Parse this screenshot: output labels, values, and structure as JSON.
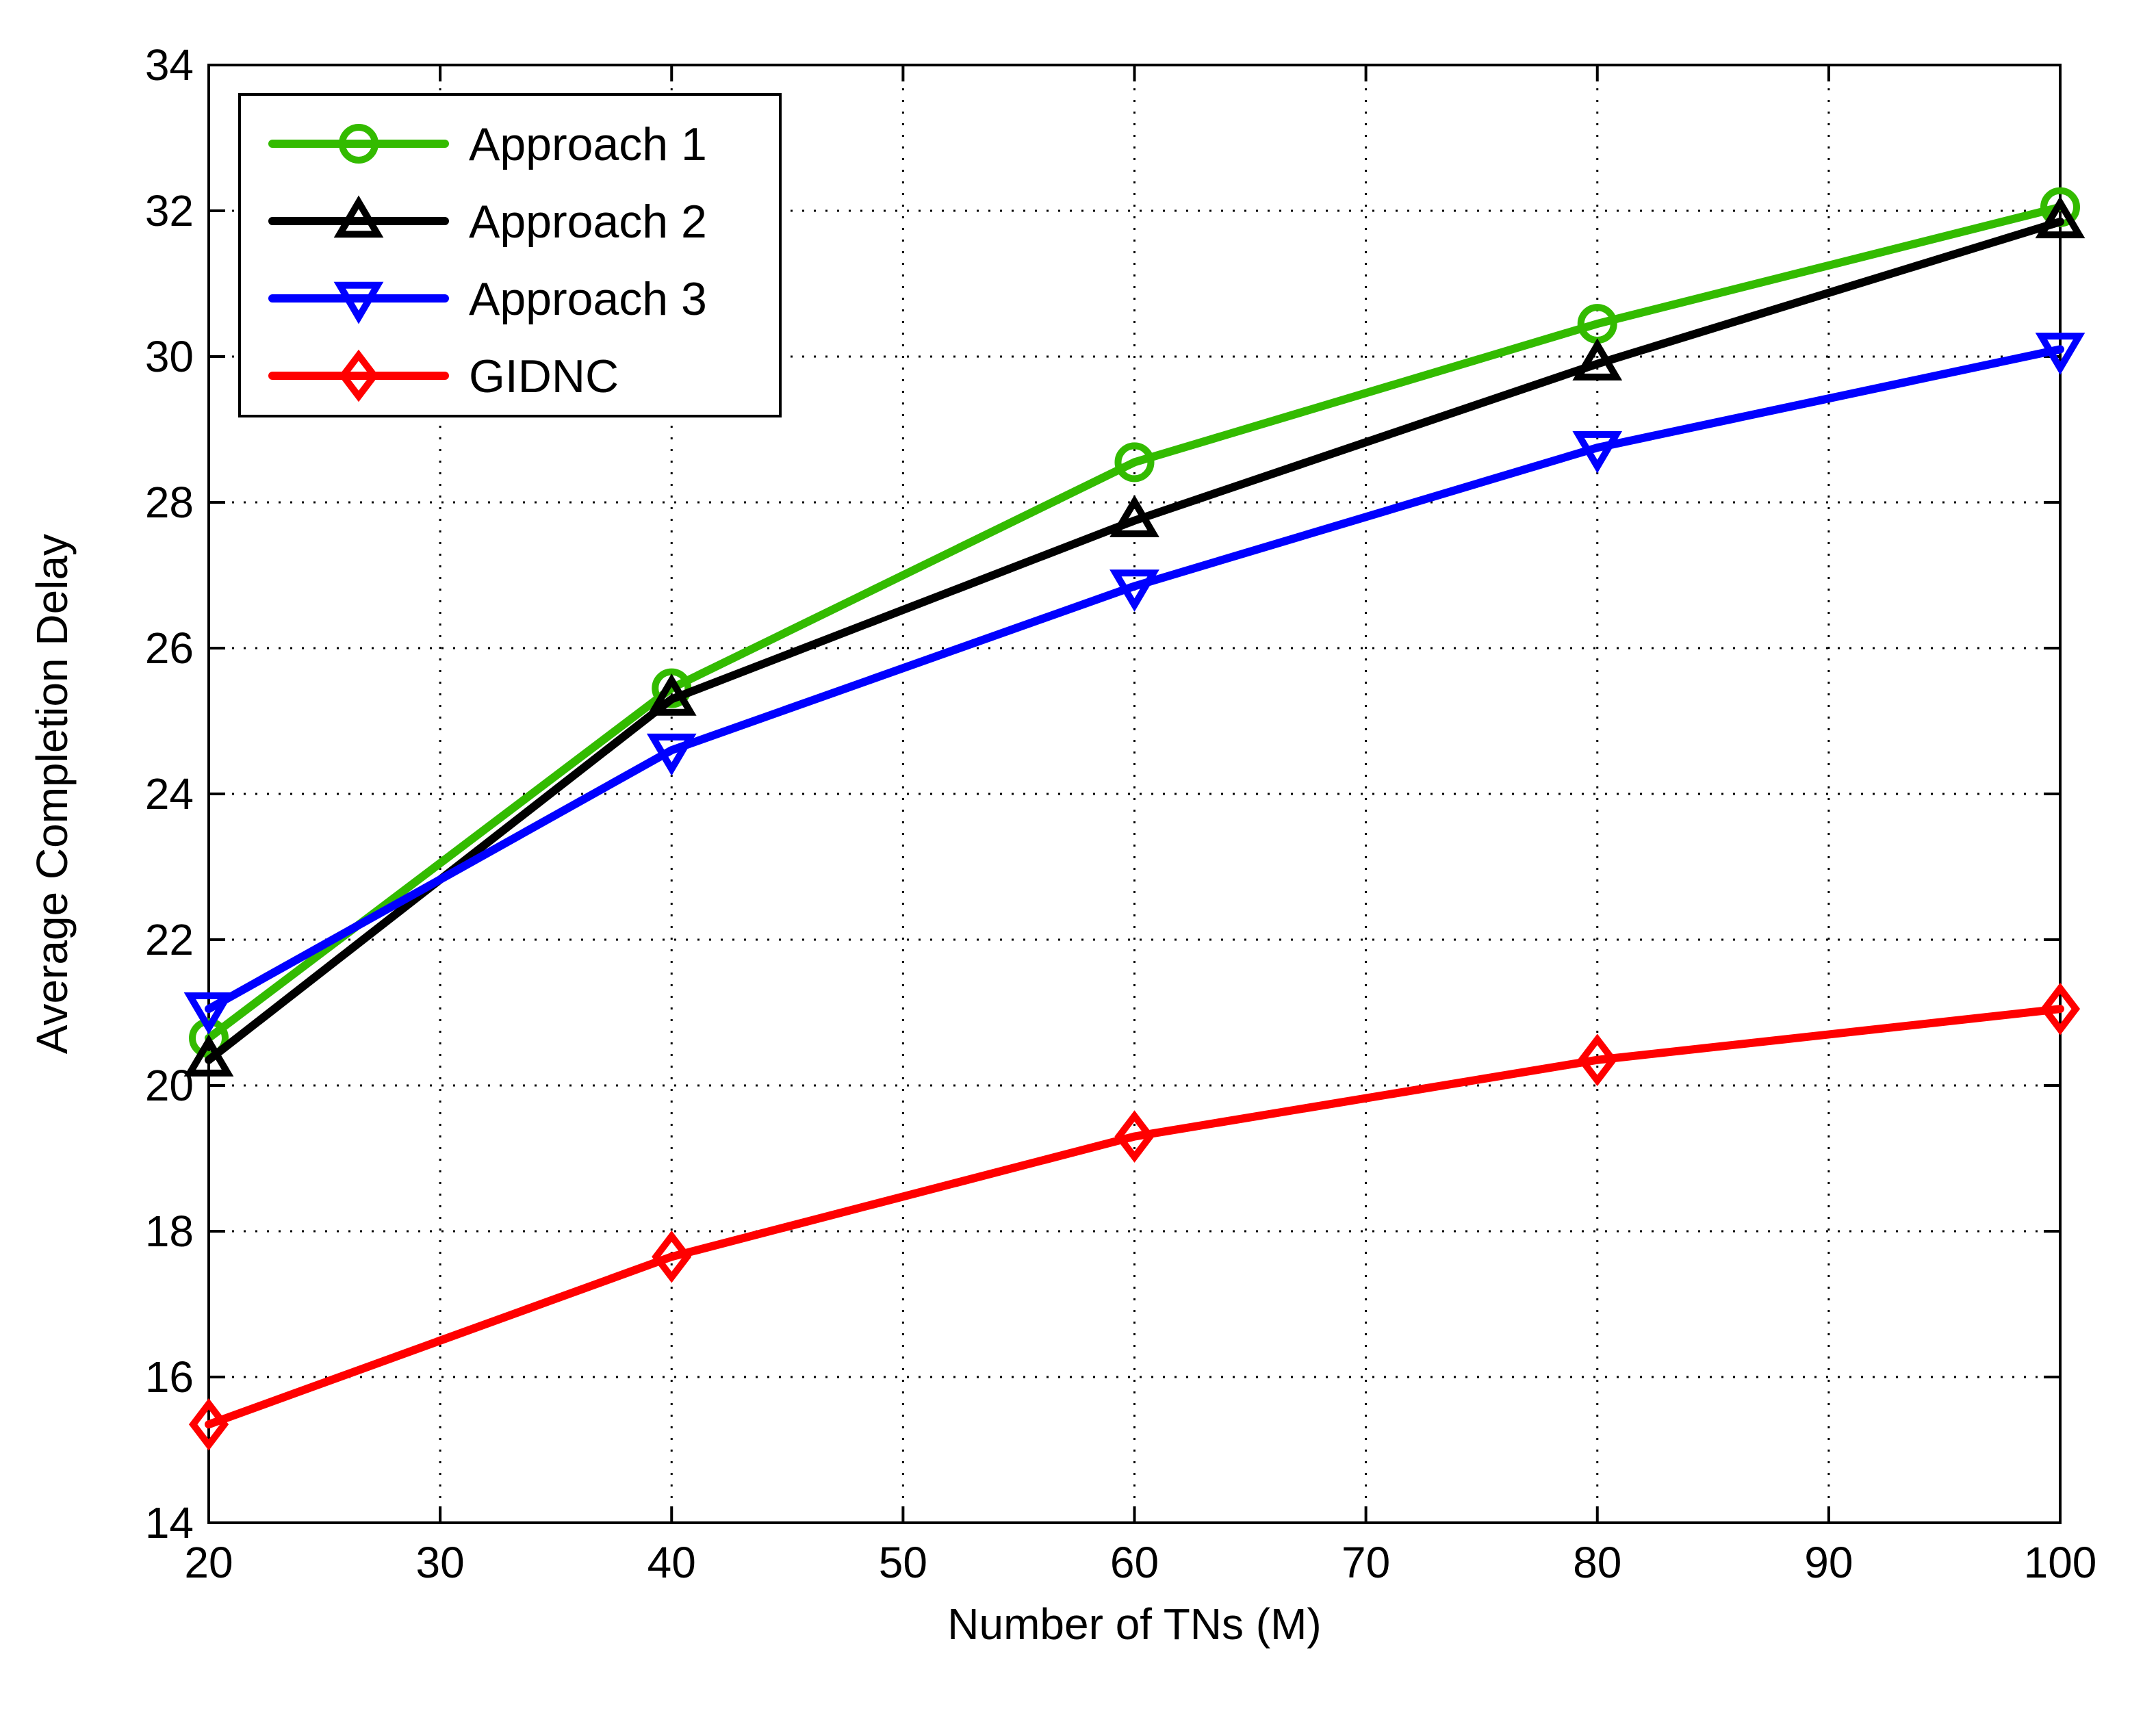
{
  "chart_data": {
    "type": "line",
    "title": "",
    "xlabel": "Number of TNs (M)",
    "ylabel": "Average Completion Delay",
    "xlim": [
      20,
      100
    ],
    "ylim": [
      14,
      34
    ],
    "xticks": [
      20,
      30,
      40,
      50,
      60,
      70,
      80,
      90,
      100
    ],
    "yticks": [
      14,
      16,
      18,
      20,
      22,
      24,
      26,
      28,
      30,
      32,
      34
    ],
    "grid": true,
    "legend_position": "top-left",
    "x": [
      20,
      40,
      60,
      80,
      100
    ],
    "series": [
      {
        "name": "Approach 1",
        "color": "#33bb00",
        "marker": "circle",
        "values": [
          20.65,
          25.45,
          28.55,
          30.45,
          32.05
        ]
      },
      {
        "name": "Approach 2",
        "color": "#000000",
        "marker": "triangle-up",
        "values": [
          20.35,
          25.3,
          27.75,
          29.9,
          31.85
        ]
      },
      {
        "name": "Approach 3",
        "color": "#0000ff",
        "marker": "triangle-down",
        "values": [
          21.05,
          24.6,
          26.85,
          28.75,
          30.1
        ]
      },
      {
        "name": "GIDNC",
        "color": "#ff0000",
        "marker": "diamond",
        "values": [
          15.35,
          17.65,
          19.3,
          20.35,
          21.05
        ]
      }
    ]
  }
}
